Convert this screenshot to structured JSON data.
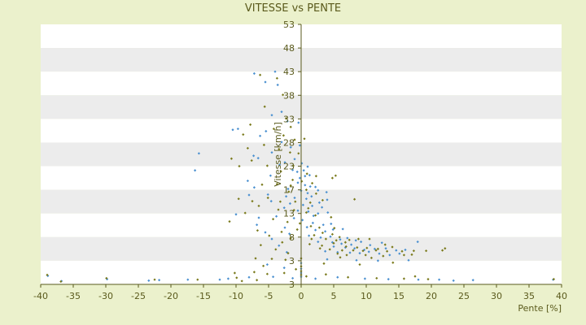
{
  "chart_data": {
    "type": "scatter",
    "title": "VITESSE vs PENTE",
    "xlabel": "Pente [%]",
    "ylabel": "Vitesse [km/h]",
    "xlim": [
      -40,
      40
    ],
    "ylim": [
      -2,
      53
    ],
    "x_ticks": [
      "-40",
      "-35",
      "-30",
      "-25",
      "-20",
      "-15",
      "-10",
      "-5",
      "0",
      "5",
      "10",
      "15",
      "20",
      "25",
      "30",
      "35",
      "40"
    ],
    "y_ticks": [
      "3",
      "3",
      "8",
      "13",
      "17",
      "23",
      "28",
      "33",
      "38",
      "43",
      "48",
      "53"
    ],
    "grid": true,
    "band_colors": [
      "#ffffff",
      "#ececec"
    ],
    "plot_background": "#ffffff",
    "page_background": "#ebf1cc",
    "axis_color": "#5a5a1c",
    "series": [
      {
        "color": "#4a90d0",
        "marker": "diamond",
        "points": [
          [
            -7.2,
            42.6
          ],
          [
            -5.5,
            40.8
          ],
          [
            -3.6,
            40.2
          ],
          [
            -4.0,
            43.0
          ],
          [
            -3.0,
            34.5
          ],
          [
            -4.5,
            33.8
          ],
          [
            -2.1,
            32.5
          ],
          [
            -0.4,
            32.2
          ],
          [
            -5.4,
            30.4
          ],
          [
            -10.5,
            30.7
          ],
          [
            -9.7,
            30.9
          ],
          [
            -6.3,
            29.4
          ],
          [
            -3.0,
            28.1
          ],
          [
            -1.6,
            27.0
          ],
          [
            -0.2,
            27.4
          ],
          [
            -7.3,
            25.2
          ],
          [
            -6.6,
            24.7
          ],
          [
            -4.5,
            25.9
          ],
          [
            -15.7,
            25.7
          ],
          [
            -3.3,
            23.3
          ],
          [
            -2.5,
            23.8
          ],
          [
            -1.0,
            24.5
          ],
          [
            0.1,
            23.6
          ],
          [
            1.0,
            22.9
          ],
          [
            -1.3,
            22.2
          ],
          [
            -0.6,
            21.8
          ],
          [
            0.4,
            22.1
          ],
          [
            -16.3,
            22.1
          ],
          [
            -4.7,
            21.0
          ],
          [
            -0.2,
            20.5
          ],
          [
            0.6,
            20.9
          ],
          [
            1.3,
            21.1
          ],
          [
            -0.5,
            19.5
          ],
          [
            0.6,
            19.0
          ],
          [
            1.4,
            18.7
          ],
          [
            2.2,
            18.6
          ],
          [
            -7.2,
            18.5
          ],
          [
            -2.0,
            18.2
          ],
          [
            0.0,
            17.8
          ],
          [
            1.0,
            17.3
          ],
          [
            2.6,
            17.9
          ],
          [
            3.9,
            17.5
          ],
          [
            -8.0,
            16.9
          ],
          [
            -5.1,
            17.0
          ],
          [
            -2.3,
            16.6
          ],
          [
            -1.0,
            16.3
          ],
          [
            0.8,
            16.1
          ],
          [
            1.6,
            16.6
          ],
          [
            2.8,
            15.3
          ],
          [
            4.0,
            15.9
          ],
          [
            -4.6,
            15.6
          ],
          [
            -1.7,
            15.1
          ],
          [
            0.3,
            14.8
          ],
          [
            1.7,
            14.6
          ],
          [
            3.2,
            14.3
          ],
          [
            -2.6,
            14.2
          ],
          [
            -0.5,
            13.6
          ],
          [
            1.1,
            13.4
          ],
          [
            2.6,
            13.0
          ],
          [
            4.1,
            13.2
          ],
          [
            -10.0,
            12.8
          ],
          [
            -6.5,
            12.1
          ],
          [
            -3.8,
            12.4
          ],
          [
            -1.1,
            12.0
          ],
          [
            0.2,
            11.6
          ],
          [
            1.8,
            11.0
          ],
          [
            3.4,
            10.6
          ],
          [
            4.6,
            10.8
          ],
          [
            -6.8,
            10.6
          ],
          [
            -2.5,
            10.0
          ],
          [
            2.2,
            9.5
          ],
          [
            3.7,
            9.2
          ],
          [
            4.9,
            9.6
          ],
          [
            6.4,
            9.7
          ],
          [
            -5.5,
            9.0
          ],
          [
            -1.8,
            8.7
          ],
          [
            1.2,
            8.3
          ],
          [
            3.0,
            7.9
          ],
          [
            4.5,
            8.1
          ],
          [
            6.0,
            7.5
          ],
          [
            7.1,
            7.8
          ],
          [
            8.4,
            7.3
          ],
          [
            -4.5,
            7.6
          ],
          [
            2.6,
            7.0
          ],
          [
            4.8,
            6.9
          ],
          [
            6.2,
            6.6
          ],
          [
            7.7,
            6.4
          ],
          [
            9.2,
            7.0
          ],
          [
            10.6,
            6.3
          ],
          [
            12.4,
            6.8
          ],
          [
            5.0,
            6.0
          ],
          [
            6.8,
            5.8
          ],
          [
            8.2,
            5.6
          ],
          [
            9.7,
            5.3
          ],
          [
            11.3,
            5.5
          ],
          [
            13.0,
            5.6
          ],
          [
            14.6,
            5.2
          ],
          [
            16.0,
            5.3
          ],
          [
            17.9,
            7.0
          ],
          [
            -3.4,
            6.2
          ],
          [
            3.7,
            5.0
          ],
          [
            5.6,
            4.8
          ],
          [
            7.5,
            4.7
          ],
          [
            9.0,
            4.6
          ],
          [
            10.4,
            4.9
          ],
          [
            12.0,
            4.5
          ],
          [
            13.6,
            4.2
          ],
          [
            15.1,
            4.5
          ],
          [
            -2.2,
            4.8
          ],
          [
            4.0,
            3.3
          ],
          [
            8.5,
            3.1
          ],
          [
            11.8,
            3.0
          ],
          [
            16.5,
            3.1
          ],
          [
            -5.2,
            2.2
          ],
          [
            -2.6,
            1.5
          ],
          [
            0.0,
            2.5
          ],
          [
            0.0,
            1.3
          ],
          [
            0.0,
            0.4
          ],
          [
            0.0,
            -0.4
          ],
          [
            -11.2,
            -0.8
          ],
          [
            -8.0,
            -0.5
          ],
          [
            -4.3,
            -0.4
          ],
          [
            -1.3,
            -0.7
          ],
          [
            2.2,
            -0.8
          ],
          [
            5.6,
            -0.5
          ],
          [
            9.8,
            -0.8
          ],
          [
            13.4,
            -0.9
          ],
          [
            18.0,
            -1.0
          ],
          [
            21.2,
            -1.0
          ],
          [
            23.4,
            -1.2
          ],
          [
            26.4,
            -1.1
          ],
          [
            -12.5,
            -1.0
          ],
          [
            -17.4,
            -1.0
          ],
          [
            -21.8,
            -1.1
          ],
          [
            -23.4,
            -1.2
          ],
          [
            -29.8,
            -0.9
          ],
          [
            -36.8,
            -1.3
          ],
          [
            -38.9,
            -0.2
          ],
          [
            38.7,
            -1.0
          ],
          [
            -8.2,
            19.9
          ],
          [
            1.9,
            12.5
          ],
          [
            0.9,
            10.1
          ]
        ]
      },
      {
        "color": "#7a7a1c",
        "marker": "diamond",
        "points": [
          [
            -6.3,
            42.3
          ],
          [
            -3.7,
            41.6
          ],
          [
            -2.8,
            38.1
          ],
          [
            -5.6,
            35.6
          ],
          [
            -2.3,
            33.1
          ],
          [
            -1.6,
            31.3
          ],
          [
            -7.8,
            31.8
          ],
          [
            -4.2,
            30.9
          ],
          [
            -8.9,
            29.7
          ],
          [
            -2.7,
            29.5
          ],
          [
            -1.0,
            28.6
          ],
          [
            0.5,
            28.8
          ],
          [
            -5.7,
            27.5
          ],
          [
            -3.4,
            26.6
          ],
          [
            -1.7,
            25.9
          ],
          [
            -0.4,
            25.7
          ],
          [
            -8.2,
            26.8
          ],
          [
            -7.6,
            24.2
          ],
          [
            -10.7,
            24.6
          ],
          [
            -9.5,
            23.0
          ],
          [
            -5.2,
            23.1
          ],
          [
            -1.2,
            23.1
          ],
          [
            0.9,
            21.4
          ],
          [
            2.3,
            20.9
          ],
          [
            -3.1,
            21.9
          ],
          [
            -1.3,
            20.1
          ],
          [
            0.1,
            19.8
          ],
          [
            1.7,
            19.4
          ],
          [
            4.8,
            20.5
          ],
          [
            5.3,
            21.0
          ],
          [
            -6.0,
            19.1
          ],
          [
            -3.7,
            19.2
          ],
          [
            -1.6,
            18.9
          ],
          [
            0.8,
            18.0
          ],
          [
            2.3,
            17.2
          ],
          [
            8.2,
            16.0
          ],
          [
            -9.6,
            16.1
          ],
          [
            -7.5,
            15.6
          ],
          [
            -5.1,
            16.3
          ],
          [
            -3.2,
            15.5
          ],
          [
            -0.9,
            15.5
          ],
          [
            1.4,
            15.3
          ],
          [
            3.3,
            15.8
          ],
          [
            -6.5,
            14.6
          ],
          [
            -3.5,
            13.8
          ],
          [
            -1.1,
            13.7
          ],
          [
            0.8,
            13.2
          ],
          [
            2.2,
            12.6
          ],
          [
            4.6,
            12.2
          ],
          [
            -8.6,
            13.1
          ],
          [
            -4.3,
            11.8
          ],
          [
            -2.1,
            11.2
          ],
          [
            -0.2,
            10.9
          ],
          [
            1.5,
            10.3
          ],
          [
            2.8,
            10.0
          ],
          [
            5.1,
            9.9
          ],
          [
            -6.7,
            9.4
          ],
          [
            -3.0,
            9.1
          ],
          [
            -0.6,
            9.6
          ],
          [
            2.0,
            8.4
          ],
          [
            3.3,
            8.9
          ],
          [
            4.8,
            8.6
          ],
          [
            5.9,
            8.0
          ],
          [
            7.4,
            7.4
          ],
          [
            -4.9,
            8.3
          ],
          [
            -1.6,
            7.8
          ],
          [
            1.6,
            7.6
          ],
          [
            3.8,
            7.6
          ],
          [
            5.4,
            7.3
          ],
          [
            6.8,
            6.9
          ],
          [
            8.8,
            7.6
          ],
          [
            10.5,
            7.6
          ],
          [
            12.9,
            6.4
          ],
          [
            -2.9,
            6.9
          ],
          [
            1.3,
            6.5
          ],
          [
            3.2,
            6.2
          ],
          [
            5.0,
            6.7
          ],
          [
            6.9,
            6.0
          ],
          [
            8.6,
            5.8
          ],
          [
            10.1,
            5.7
          ],
          [
            11.8,
            5.5
          ],
          [
            14.0,
            5.9
          ],
          [
            -6.2,
            6.3
          ],
          [
            2.9,
            5.6
          ],
          [
            4.4,
            5.4
          ],
          [
            6.3,
            5.2
          ],
          [
            8.0,
            5.2
          ],
          [
            9.5,
            5.1
          ],
          [
            11.5,
            5.2
          ],
          [
            13.2,
            5.0
          ],
          [
            15.5,
            5.0
          ],
          [
            17.3,
            5.1
          ],
          [
            19.2,
            5.1
          ],
          [
            21.7,
            5.2
          ],
          [
            22.1,
            5.6
          ],
          [
            -3.9,
            5.4
          ],
          [
            5.6,
            4.5
          ],
          [
            7.0,
            4.2
          ],
          [
            9.9,
            4.2
          ],
          [
            12.6,
            4.0
          ],
          [
            15.8,
            4.2
          ],
          [
            17.0,
            4.3
          ],
          [
            -2.0,
            4.6
          ],
          [
            6.0,
            3.7
          ],
          [
            10.8,
            3.6
          ],
          [
            -7.0,
            3.5
          ],
          [
            -4.5,
            3.4
          ],
          [
            -2.4,
            3.2
          ],
          [
            0.0,
            3.5
          ],
          [
            0.0,
            1.8
          ],
          [
            0.0,
            0.8
          ],
          [
            0.0,
            0.0
          ],
          [
            -5.8,
            1.9
          ],
          [
            -0.8,
            1.2
          ],
          [
            3.5,
            2.4
          ],
          [
            9.0,
            2.2
          ],
          [
            14.1,
            2.6
          ],
          [
            -10.2,
            0.4
          ],
          [
            -7.2,
            0.6
          ],
          [
            -5.2,
            0.2
          ],
          [
            -2.6,
            0.4
          ],
          [
            0.8,
            -0.3
          ],
          [
            3.8,
            0.1
          ],
          [
            7.2,
            -0.5
          ],
          [
            11.6,
            -0.7
          ],
          [
            15.8,
            -0.8
          ],
          [
            17.5,
            -0.3
          ],
          [
            19.5,
            -0.9
          ],
          [
            -9.9,
            -0.6
          ],
          [
            -9.1,
            -1.3
          ],
          [
            -6.8,
            -1.1
          ],
          [
            -15.9,
            -1.0
          ],
          [
            -22.5,
            -1.0
          ],
          [
            -29.9,
            -0.7
          ],
          [
            -36.9,
            -1.4
          ],
          [
            -39.0,
            0.0
          ],
          [
            38.8,
            -0.9
          ],
          [
            -1.9,
            17.6
          ],
          [
            -11.0,
            11.3
          ],
          [
            1.1,
            14.1
          ]
        ]
      }
    ]
  }
}
